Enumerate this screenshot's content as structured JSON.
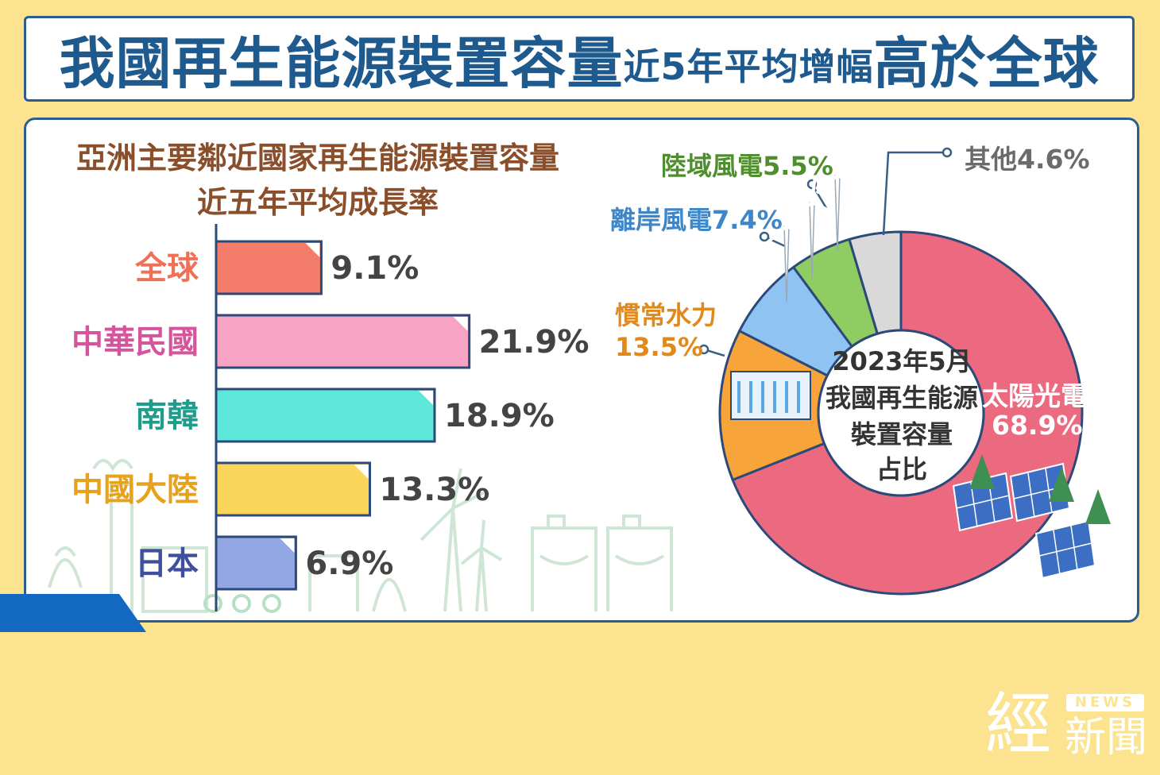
{
  "header": {
    "title_main": "我國再生能源裝置容量",
    "title_mid": "近5年平均增幅",
    "title_end": "高於全球"
  },
  "chart_data": [
    {
      "type": "bar",
      "orientation": "horizontal",
      "title": "亞洲主要鄰近國家再生能源裝置容量",
      "subtitle": "近五年平均成長率",
      "categories": [
        "全球",
        "中華民國",
        "南韓",
        "中國大陸",
        "日本"
      ],
      "values": [
        9.1,
        21.9,
        18.9,
        13.3,
        6.9
      ],
      "value_labels": [
        "9.1%",
        "21.9%",
        "18.9%",
        "13.3%",
        "6.9%"
      ],
      "unit": "%",
      "colors": [
        "#f47c6a",
        "#f7a3c4",
        "#5ee8dc",
        "#fbd65b",
        "#93a7e5"
      ],
      "label_colors": [
        "#ef6f57",
        "#d6549c",
        "#1f9d8c",
        "#e6a21c",
        "#3f4f9e"
      ],
      "xlim": [
        0,
        24
      ],
      "grid": false
    },
    {
      "type": "pie",
      "variant": "donut",
      "center_text": [
        "2023年5月",
        "我國再生能源",
        "裝置容量",
        "占比"
      ],
      "slices": [
        {
          "label": "太陽光電",
          "value": 68.9,
          "value_label": "68.9%",
          "color": "#ec6a80"
        },
        {
          "label": "慣常水力",
          "value": 13.5,
          "value_label": "13.5%",
          "color": "#f7a43a"
        },
        {
          "label": "離岸風電",
          "value": 7.4,
          "value_label": "7.4%",
          "color": "#8ec3f2"
        },
        {
          "label": "陸域風電",
          "value": 5.5,
          "value_label": "5.5%",
          "color": "#8fcc62"
        },
        {
          "label": "其他",
          "value": 4.6,
          "value_label": "4.6%",
          "color": "#d9d9d9"
        }
      ]
    }
  ],
  "pie_labels": {
    "other": "其他4.6%",
    "onshore": "陸域風電5.5%",
    "offshore": "離岸風電7.4%",
    "hydro_name": "慣常水力",
    "hydro_value": "13.5%",
    "solar_name": "太陽光電",
    "solar_value": "68.9%"
  },
  "logo": {
    "big": "經",
    "news": "NEWS",
    "sub": "新聞"
  }
}
